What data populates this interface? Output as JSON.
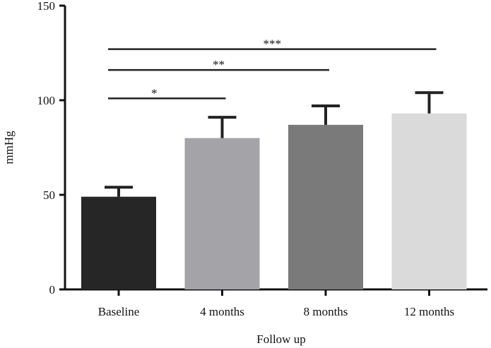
{
  "chart_data": {
    "type": "bar",
    "categories": [
      "Baseline",
      "4 months",
      "8 months",
      "12 months"
    ],
    "values": [
      49,
      80,
      87,
      93
    ],
    "errors": [
      5,
      11,
      10,
      11
    ],
    "colors": [
      "#262626",
      "#a3a3a8",
      "#7a7a7a",
      "#dadada"
    ],
    "xlabel": "Follow up",
    "ylabel": "mmHg",
    "ylim": [
      0,
      150
    ],
    "yticks": [
      0,
      50,
      100,
      150
    ],
    "grid": false,
    "significance": [
      {
        "from": "Baseline",
        "to": "4 months",
        "y": 101,
        "label": "*"
      },
      {
        "from": "Baseline",
        "to": "8 months",
        "y": 116,
        "label": "**"
      },
      {
        "from": "Baseline",
        "to": "12 months",
        "y": 127,
        "label": "***"
      }
    ]
  }
}
